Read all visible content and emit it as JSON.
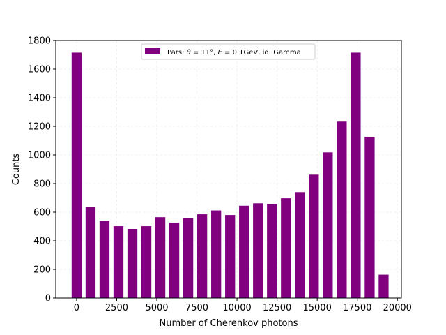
{
  "chart_data": {
    "type": "bar",
    "xlabel": "Number of Cherenkov photons",
    "ylabel": "Counts",
    "xlim": [
      -1300,
      20250
    ],
    "ylim": [
      0,
      1800
    ],
    "x_ticks": [
      0,
      2500,
      5000,
      7500,
      10000,
      12500,
      15000,
      17500,
      20000
    ],
    "y_ticks": [
      0,
      200,
      400,
      600,
      800,
      1000,
      1200,
      1400,
      1600,
      1800
    ],
    "x_tick_labels": [
      "0",
      "2500",
      "5000",
      "7500",
      "10000",
      "12500",
      "15000",
      "17500",
      "20000"
    ],
    "y_tick_labels": [
      "0",
      "200",
      "400",
      "600",
      "800",
      "1000",
      "1200",
      "1400",
      "1600",
      "1800"
    ],
    "grid": true,
    "legend_position": "top-center",
    "bar_width": 620,
    "color": "#800080",
    "series": [
      {
        "name": "Pars: θ = 11°, E = 0.1GeV, id: Gamma",
        "x": [
          0,
          870,
          1740,
          2610,
          3480,
          4350,
          5220,
          6090,
          6960,
          7830,
          8700,
          9570,
          10440,
          11310,
          12180,
          13050,
          13920,
          14790,
          15660,
          16530,
          17400,
          18270,
          19140
        ],
        "values": [
          1715,
          638,
          540,
          502,
          483,
          502,
          565,
          527,
          560,
          585,
          612,
          580,
          645,
          662,
          658,
          697,
          740,
          862,
          1018,
          1233,
          1715,
          1127,
          163
        ]
      }
    ]
  },
  "legend": {
    "prefix": "Pars: ",
    "theta_sym": "θ",
    "theta_val": " = 11°, ",
    "e_sym": "E",
    "e_val": " = 0.1GeV, id: Gamma"
  }
}
